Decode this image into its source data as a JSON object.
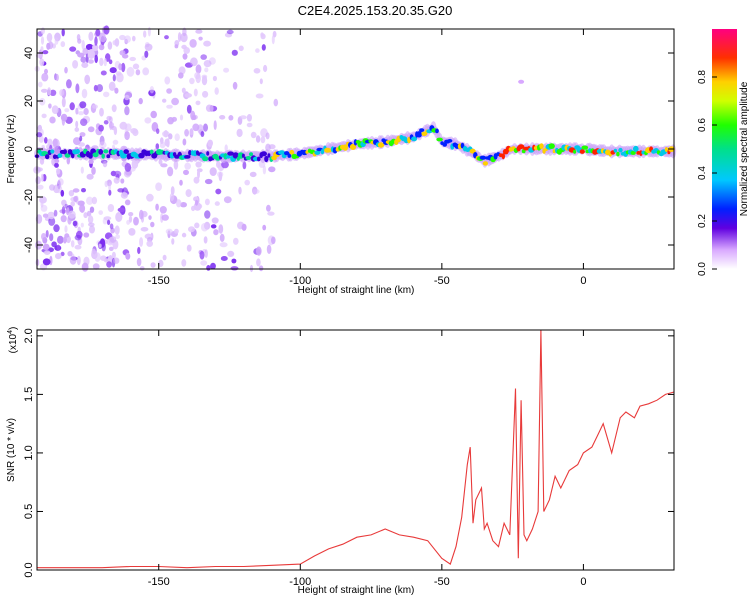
{
  "title": "C2E4.2025.153.20.35.G20",
  "chart_data": [
    {
      "type": "heatmap",
      "xlabel": "Height of straight line (km)",
      "ylabel": "Frequency (Hz)",
      "xlim": [
        -193,
        32
      ],
      "ylim": [
        -50,
        50
      ],
      "xticks": [
        -150,
        -100,
        -50,
        0
      ],
      "yticks": [
        -40,
        -20,
        0,
        20,
        40
      ],
      "colorbar": {
        "label": "Normalized spectral amplitude",
        "range": [
          0,
          1
        ],
        "ticks": [
          0.0,
          0.2,
          0.4,
          0.6,
          0.8
        ],
        "tick_labels": [
          "0.0",
          "0.2",
          "0.4",
          "0.6",
          "0.8"
        ]
      },
      "ridge": {
        "description_points_x": [
          -193,
          -165,
          -130,
          -110,
          -100,
          -80,
          -70,
          -60,
          -53,
          -50,
          -45,
          -40,
          -35,
          -30,
          -25,
          -20,
          -10,
          0,
          10,
          20,
          32
        ],
        "description_points_freq": [
          -2,
          -2,
          -3,
          -3,
          -2,
          2,
          3,
          5,
          9,
          3,
          2,
          -1,
          -5,
          -3,
          0,
          0,
          0,
          0,
          -1,
          -1,
          -1
        ]
      },
      "outlier_points": [
        {
          "x": -22,
          "y": 28
        }
      ],
      "grid": false
    },
    {
      "type": "line",
      "xlabel": "Height of straight line (km)",
      "ylabel": "SNR (10 * v/v)",
      "exponent_label": "(x10",
      "exponent_power": "4",
      "exponent_close": ")",
      "xlim": [
        -193,
        32
      ],
      "ylim": [
        0,
        2.05
      ],
      "xticks": [
        -150,
        -100,
        -50,
        0
      ],
      "yticks": [
        0.0,
        0.5,
        1.0,
        1.5,
        2.0
      ],
      "ytick_labels": [
        "0.0",
        "0.5",
        "1.0",
        "1.5",
        "2.0"
      ],
      "series": [
        {
          "color": "#e83a3a",
          "x": [
            -193,
            -180,
            -170,
            -160,
            -150,
            -140,
            -130,
            -120,
            -110,
            -100,
            -95,
            -90,
            -85,
            -80,
            -75,
            -70,
            -65,
            -60,
            -55,
            -50,
            -47,
            -45,
            -43,
            -41,
            -40,
            -39,
            -38,
            -36,
            -35,
            -34,
            -32,
            -30,
            -28,
            -26,
            -24,
            -23,
            -22,
            -21,
            -20,
            -18,
            -16,
            -15,
            -14,
            -12,
            -10,
            -8,
            -5,
            -2,
            0,
            3,
            5,
            7,
            10,
            13,
            15,
            18,
            20,
            23,
            26,
            29,
            32
          ],
          "y": [
            0.02,
            0.02,
            0.02,
            0.03,
            0.03,
            0.02,
            0.03,
            0.03,
            0.04,
            0.05,
            0.12,
            0.18,
            0.22,
            0.28,
            0.3,
            0.35,
            0.3,
            0.28,
            0.25,
            0.1,
            0.05,
            0.2,
            0.45,
            0.9,
            1.05,
            0.4,
            0.6,
            0.7,
            0.35,
            0.4,
            0.25,
            0.2,
            0.4,
            0.3,
            1.55,
            0.1,
            1.45,
            0.3,
            0.25,
            0.35,
            0.5,
            2.05,
            0.5,
            0.6,
            0.8,
            0.7,
            0.85,
            0.9,
            1.0,
            1.05,
            1.15,
            1.25,
            1.0,
            1.3,
            1.35,
            1.3,
            1.4,
            1.42,
            1.45,
            1.5,
            1.52
          ]
        }
      ],
      "grid": false
    }
  ]
}
